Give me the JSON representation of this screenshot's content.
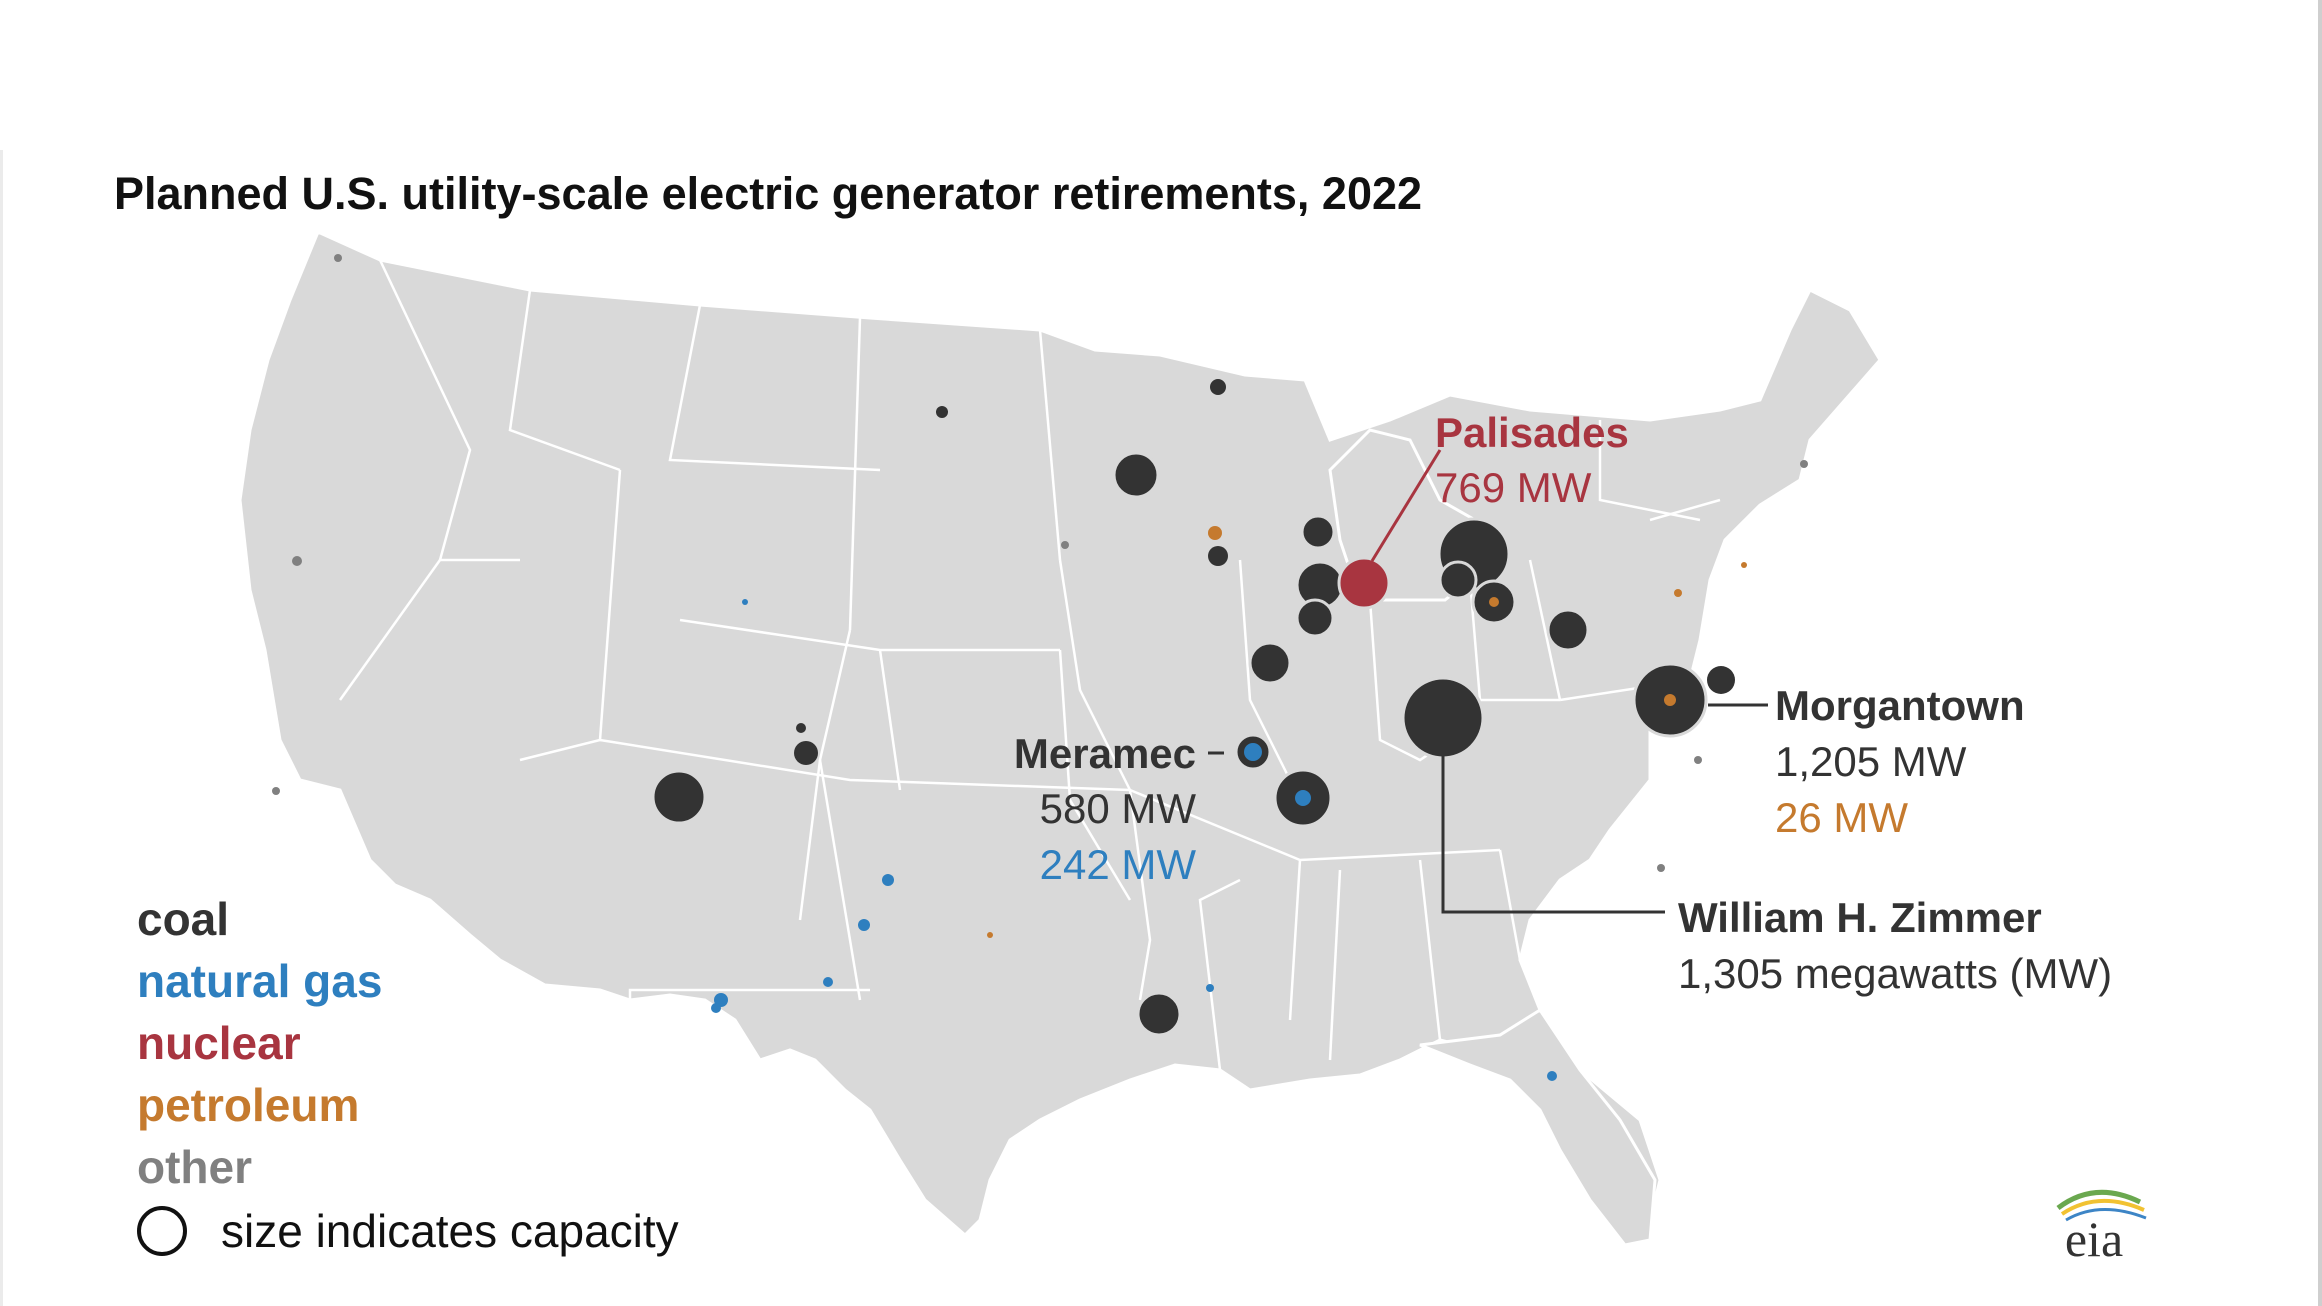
{
  "title": "Planned U.S. utility-scale electric generator retirements, 2022",
  "colors": {
    "coal": "#333333",
    "natural_gas": "#2e7fbf",
    "nuclear": "#a83540",
    "petroleum": "#c57a2e",
    "other": "#808080",
    "land": "#d9d9d9",
    "border": "#ffffff"
  },
  "legend": {
    "items": [
      {
        "key": "coal",
        "label": "coal",
        "color": "#333333"
      },
      {
        "key": "natural_gas",
        "label": "natural gas",
        "color": "#2e7fbf"
      },
      {
        "key": "nuclear",
        "label": "nuclear",
        "color": "#a83540"
      },
      {
        "key": "petroleum",
        "label": "petroleum",
        "color": "#c57a2e"
      },
      {
        "key": "other",
        "label": "other",
        "color": "#808080"
      }
    ],
    "size_note": "size indicates capacity"
  },
  "callouts": {
    "palisades": {
      "name": "Palisades",
      "line1": "769 MW"
    },
    "morgantown": {
      "name": "Morgantown",
      "line1": "1,205 MW",
      "line2": "26 MW"
    },
    "meramec": {
      "name": "Meramec",
      "line1": "580 MW",
      "line2": "242 MW"
    },
    "zimmer": {
      "name": "William H. Zimmer",
      "line1": "1,305 megawatts (MW)"
    }
  },
  "logo": {
    "text": "eia",
    "icon": "eia-logo-icon"
  }
}
